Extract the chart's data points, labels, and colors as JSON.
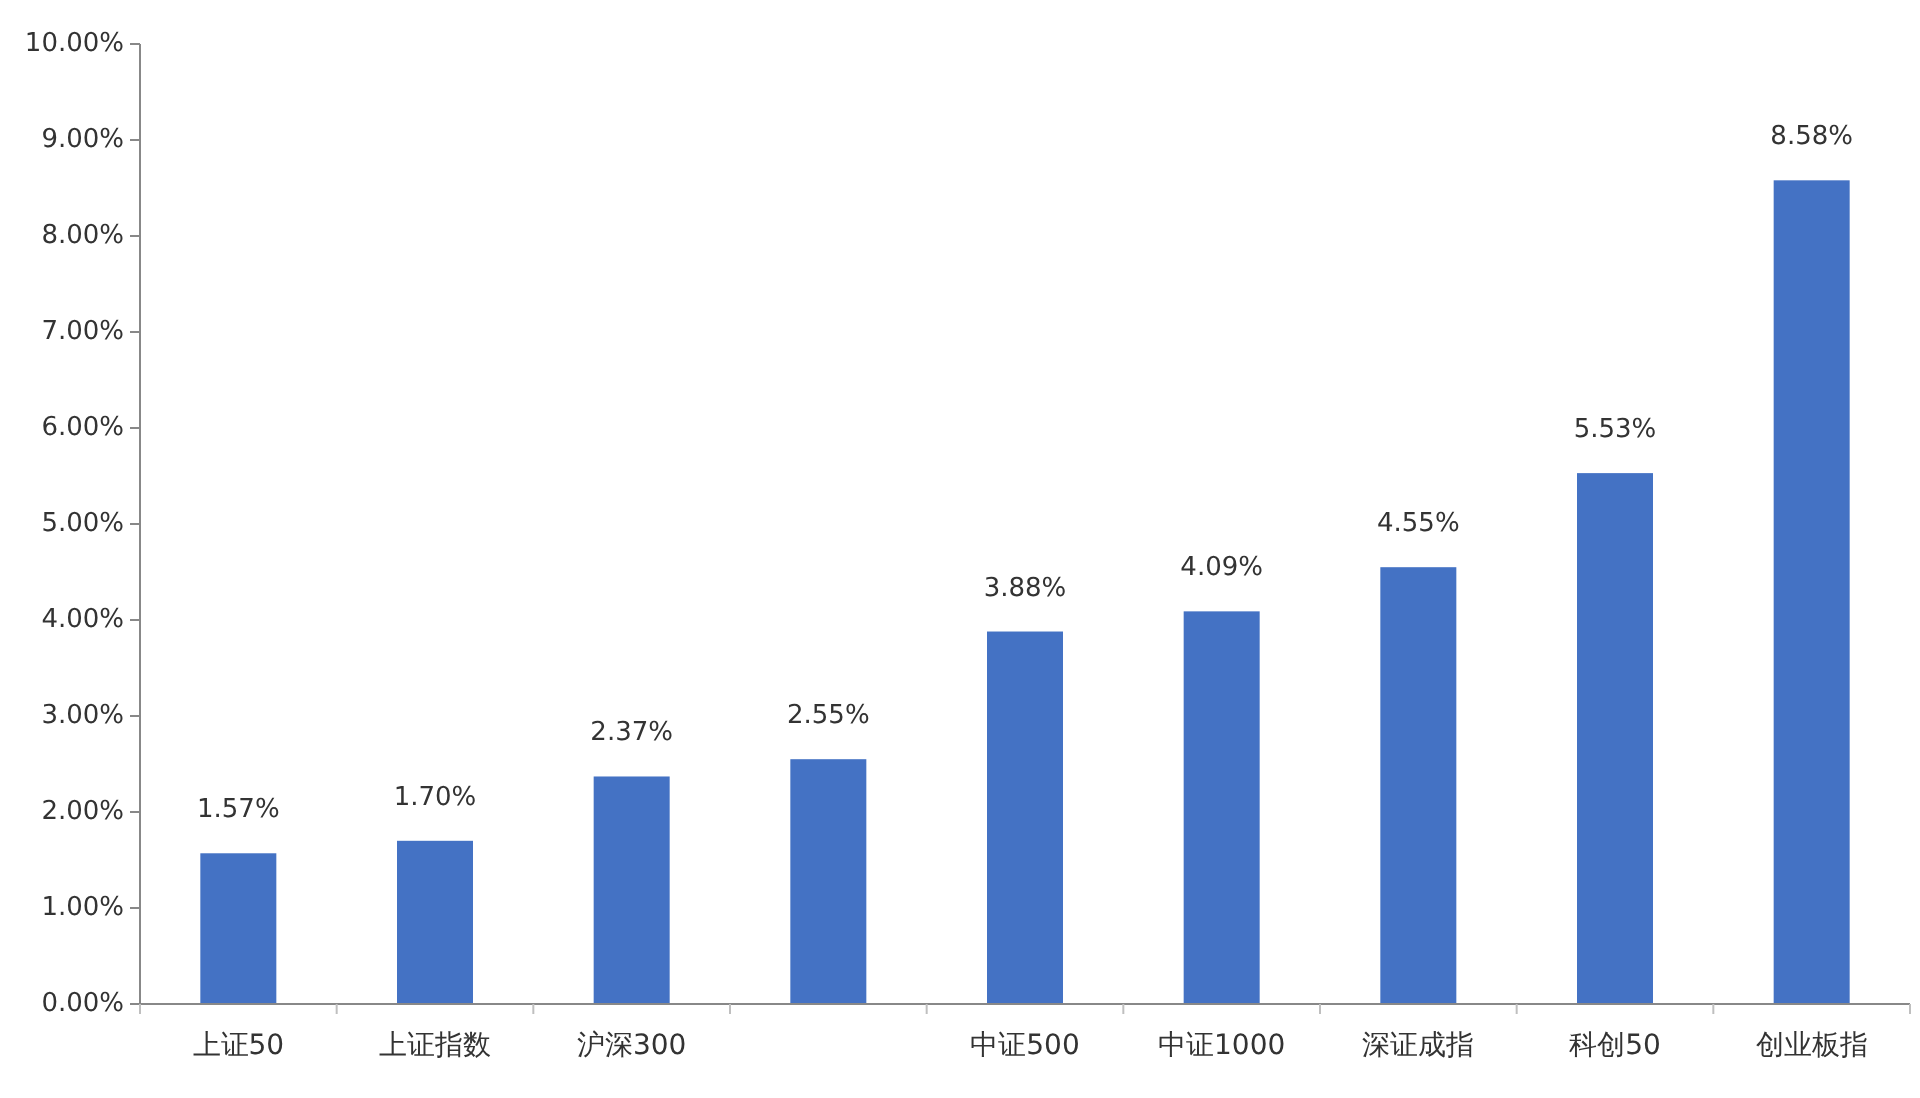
{
  "chart_data": {
    "type": "bar",
    "categories": [
      "上证50",
      "上证指数",
      "沪深300",
      null,
      "中证500",
      "中证1000",
      "深证成指",
      "科创50",
      "创业板指"
    ],
    "values": [
      1.57,
      1.7,
      2.37,
      2.55,
      3.88,
      4.09,
      4.55,
      5.53,
      8.58
    ],
    "value_labels": [
      "1.57%",
      "1.70%",
      "2.37%",
      "2.55%",
      "3.88%",
      "4.09%",
      "4.55%",
      "5.53%",
      "8.58%"
    ],
    "color": "#4472c4",
    "ylim": [
      0,
      10
    ],
    "yticks": [
      {
        "value": 0,
        "label": "0.00%"
      },
      {
        "value": 1,
        "label": "1.00%"
      },
      {
        "value": 2,
        "label": "2.00%"
      },
      {
        "value": 3,
        "label": "3.00%"
      },
      {
        "value": 4,
        "label": "4.00%"
      },
      {
        "value": 5,
        "label": "5.00%"
      },
      {
        "value": 6,
        "label": "6.00%"
      },
      {
        "value": 7,
        "label": "7.00%"
      },
      {
        "value": 8,
        "label": "8.00%"
      },
      {
        "value": 9,
        "label": "9.00%"
      },
      {
        "value": 10,
        "label": "10.00%"
      }
    ],
    "grid": false
  }
}
